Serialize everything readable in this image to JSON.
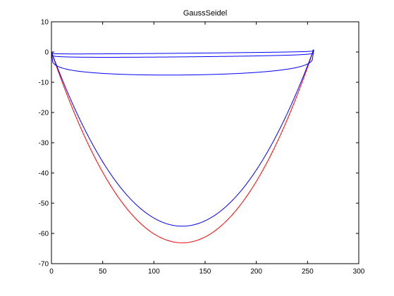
{
  "chart_data": {
    "type": "line",
    "title": "GaussSeidel",
    "xlabel": "",
    "ylabel": "",
    "xlim": [
      0,
      300
    ],
    "ylim": [
      -70,
      10
    ],
    "xticks": [
      0,
      50,
      100,
      150,
      200,
      250,
      300
    ],
    "yticks": [
      10,
      0,
      -10,
      -20,
      -30,
      -40,
      -50,
      -60,
      -70
    ],
    "grid": false,
    "legend": "none",
    "x_domain": [
      0,
      256
    ],
    "series": [
      {
        "color": "#ff0000",
        "min_value": -63.5,
        "min_at": 128,
        "end_value": 0.8
      },
      {
        "color": "#0000ff",
        "min_value": -58.0,
        "min_at": 128,
        "end_value": 0.8
      },
      {
        "color": "#0000ff",
        "min_value": -8.0,
        "min_at": 128,
        "end_value": 0.8
      },
      {
        "color": "#0000ff",
        "min_value": -2.0,
        "min_at": 128,
        "end_value": 0.8
      },
      {
        "color": "#0000ff",
        "min_value": -0.8,
        "min_at": 128,
        "end_value": 0.8
      }
    ]
  }
}
